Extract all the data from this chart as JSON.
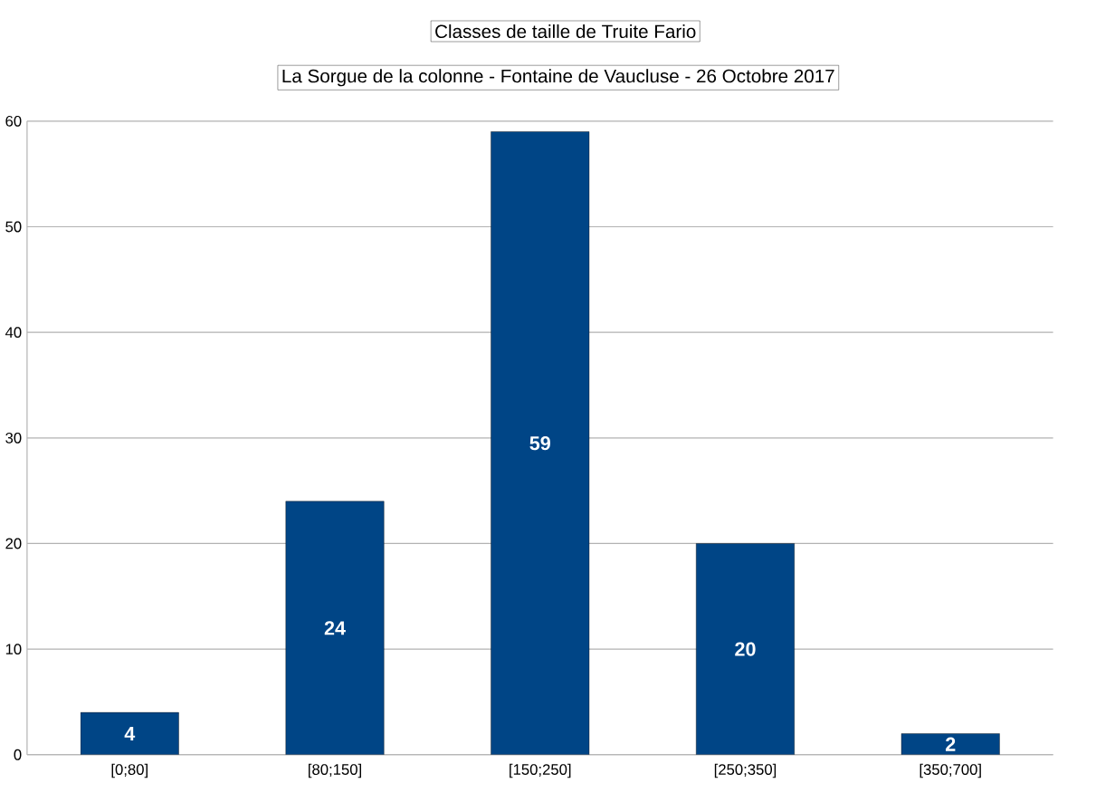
{
  "chart_data": {
    "type": "bar",
    "title": "Classes de taille de Truite Fario",
    "subtitle": "La Sorgue de la colonne - Fontaine de Vaucluse - 26 Octobre 2017",
    "categories": [
      "[0;80]",
      "[80;150]",
      "[150;250]",
      "[250;350]",
      "[350;700]"
    ],
    "values": [
      4,
      24,
      59,
      20,
      2
    ],
    "color": "#004586",
    "ylim": [
      0,
      60
    ],
    "yticks": [
      0,
      10,
      20,
      30,
      40,
      50,
      60
    ],
    "grid": "y",
    "data_labels": true
  }
}
